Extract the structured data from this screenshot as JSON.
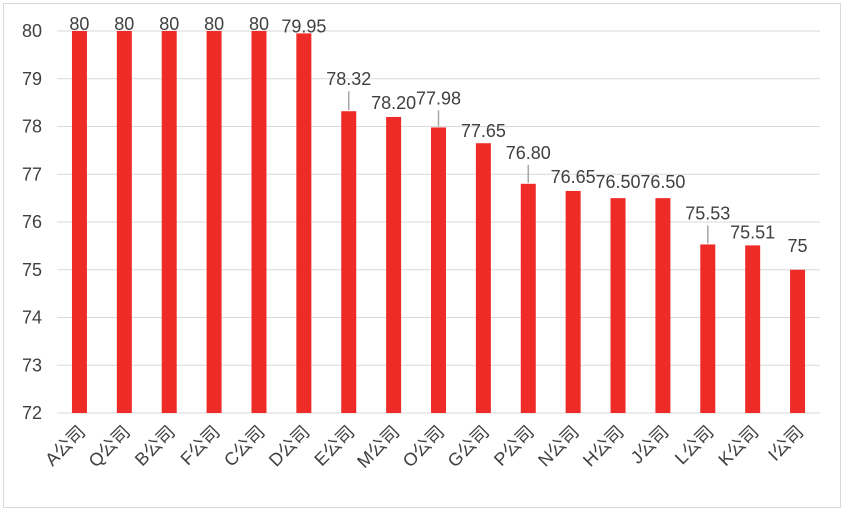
{
  "chart_data": {
    "type": "bar",
    "categories": [
      "A公司",
      "Q公司",
      "B公司",
      "F公司",
      "C公司",
      "D公司",
      "E公司",
      "M公司",
      "O公司",
      "G公司",
      "P公司",
      "N公司",
      "H公司",
      "J公司",
      "L公司",
      "K公司",
      "I公司"
    ],
    "values": [
      80,
      80,
      80,
      80,
      80,
      79.95,
      78.32,
      78.2,
      77.98,
      77.65,
      76.8,
      76.65,
      76.5,
      76.5,
      75.53,
      75.51,
      75
    ],
    "data_labels": [
      "80",
      "80",
      "80",
      "80",
      "80",
      "79.95",
      "78.32",
      "78.20",
      "77.98",
      "77.65",
      "76.80",
      "76.65",
      "76.50",
      "76.50",
      "75.53",
      "75.51",
      "75"
    ],
    "ylim": [
      72,
      80
    ],
    "yticks": [
      "72",
      "73",
      "74",
      "75",
      "76",
      "77",
      "78",
      "79",
      "80"
    ],
    "title": "",
    "xlabel": "",
    "ylabel": "",
    "grid": true,
    "bar_color": "#ee2b26",
    "gridline_color": "#d9d9d9",
    "label_color": "#404040"
  }
}
